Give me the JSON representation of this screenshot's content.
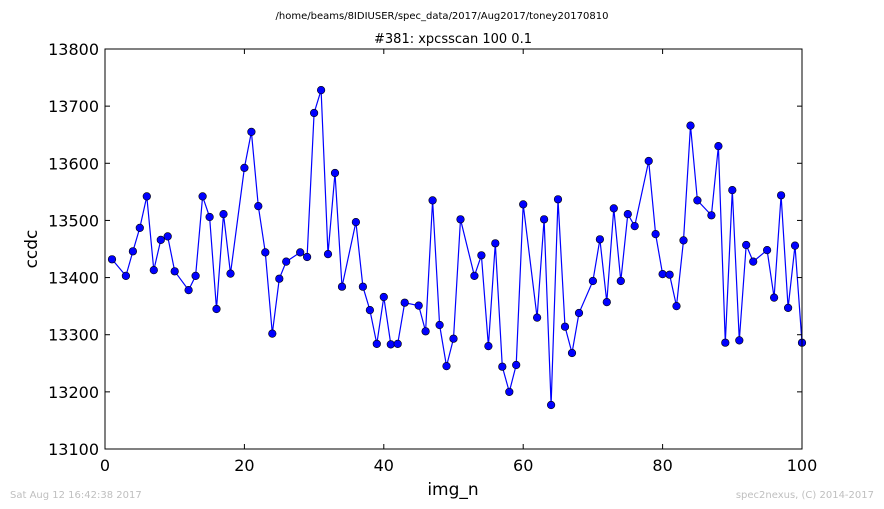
{
  "chart_data": {
    "type": "line",
    "suptitle": "/home/beams/8IDIUSER/spec_data/2017/Aug2017/toney20170810",
    "title": "#381: xpcsscan 100 0.1",
    "xlabel": "img_n",
    "ylabel": "ccdc",
    "xlim": [
      0,
      100
    ],
    "ylim": [
      13100,
      13800
    ],
    "xticks": [
      0,
      20,
      40,
      60,
      80,
      100
    ],
    "yticks": [
      13100,
      13200,
      13300,
      13400,
      13500,
      13600,
      13700,
      13800
    ],
    "grid": false,
    "color": "#0000ff",
    "marker": "circle",
    "x": [
      1,
      3,
      4,
      5,
      6,
      7,
      8,
      9,
      10,
      12,
      13,
      14,
      15,
      16,
      17,
      18,
      20,
      21,
      22,
      23,
      24,
      25,
      26,
      28,
      29,
      30,
      31,
      32,
      33,
      34,
      36,
      37,
      38,
      39,
      40,
      41,
      42,
      43,
      45,
      46,
      47,
      48,
      49,
      50,
      51,
      53,
      54,
      55,
      56,
      57,
      58,
      59,
      60,
      62,
      63,
      64,
      65,
      66,
      67,
      68,
      70,
      71,
      72,
      73,
      74,
      75,
      76,
      78,
      79,
      80,
      81,
      82,
      83,
      84,
      85,
      87,
      88,
      89,
      90,
      91,
      92,
      93,
      95,
      96,
      97,
      98,
      99,
      100
    ],
    "y": [
      13432,
      13403,
      13446,
      13487,
      13542,
      13413,
      13466,
      13472,
      13411,
      13378,
      13403,
      13542,
      13506,
      13345,
      13511,
      13407,
      13592,
      13655,
      13525,
      13444,
      13302,
      13398,
      13428,
      13444,
      13436,
      13688,
      13728,
      13441,
      13583,
      13384,
      13497,
      13384,
      13343,
      13284,
      13366,
      13283,
      13284,
      13356,
      13351,
      13306,
      13535,
      13317,
      13245,
      13293,
      13502,
      13403,
      13439,
      13280,
      13460,
      13244,
      13200,
      13247,
      13528,
      13330,
      13502,
      13177,
      13537,
      13314,
      13268,
      13338,
      13394,
      13467,
      13357,
      13521,
      13394,
      13511,
      13490,
      13604,
      13476,
      13406,
      13405,
      13350,
      13465,
      13666,
      13535,
      13509,
      13630,
      13286,
      13553,
      13290,
      13457,
      13428,
      13448,
      13365,
      13544,
      13347,
      13456,
      13286
    ]
  },
  "footer": {
    "timestamp": "Sat Aug 12 16:42:38 2017",
    "credit": "spec2nexus, (C) 2014-2017"
  }
}
